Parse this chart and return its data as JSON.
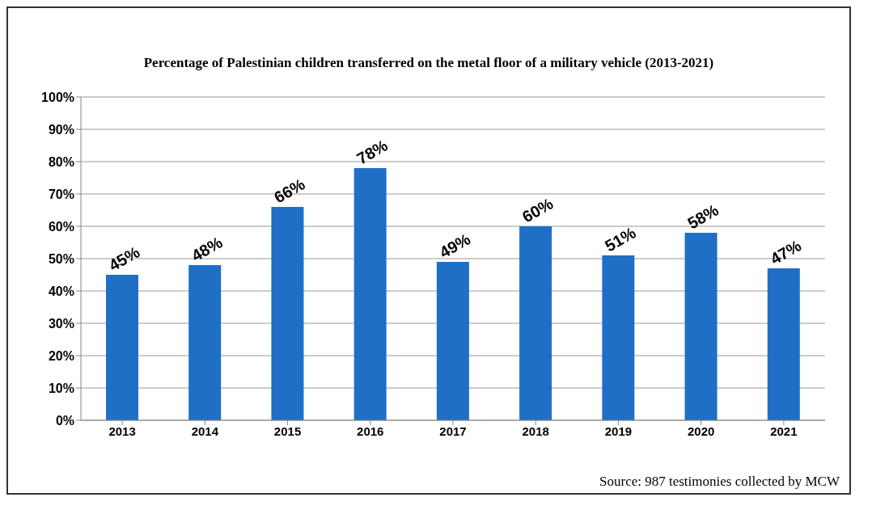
{
  "chart_data": {
    "type": "bar",
    "title": "Percentage of Palestinian children transferred on the metal floor of a military vehicle (2013-2021)",
    "categories": [
      "2013",
      "2014",
      "2015",
      "2016",
      "2017",
      "2018",
      "2019",
      "2020",
      "2021"
    ],
    "values": [
      45,
      48,
      66,
      78,
      49,
      60,
      51,
      58,
      47
    ],
    "value_labels": [
      "45%",
      "48%",
      "66%",
      "78%",
      "49%",
      "60%",
      "51%",
      "58%",
      "47%"
    ],
    "color": "#1f6fc6",
    "ylim": [
      0,
      100
    ],
    "yticks": [
      {
        "value": 0,
        "label": "0%"
      },
      {
        "value": 10,
        "label": "10%"
      },
      {
        "value": 20,
        "label": "20%"
      },
      {
        "value": 30,
        "label": "30%"
      },
      {
        "value": 40,
        "label": "40%"
      },
      {
        "value": 50,
        "label": "50%"
      },
      {
        "value": 60,
        "label": "60%"
      },
      {
        "value": 70,
        "label": "70%"
      },
      {
        "value": 80,
        "label": "80%"
      },
      {
        "value": 90,
        "label": "90%"
      },
      {
        "value": 100,
        "label": "100%"
      }
    ],
    "grid": "y",
    "annotations": [
      "Source: 987 testimonies collected by MCW"
    ]
  }
}
